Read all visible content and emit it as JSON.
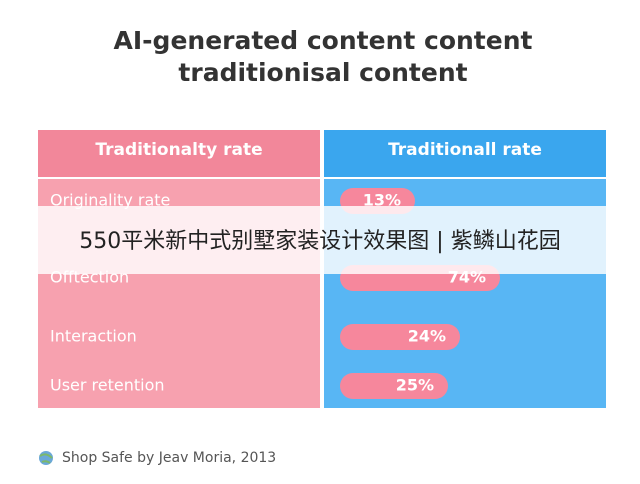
{
  "header": {
    "title_lines": [
      "AI-generated content content",
      "traditionisal content"
    ]
  },
  "table": {
    "columns": [
      "Traditionalty rate",
      "Traditionall rate"
    ],
    "rows": [
      [
        "Originality rate",
        "13%"
      ],
      [
        "Offtection",
        "74%"
      ],
      [
        "Interaction",
        "24%"
      ],
      [
        "User retention",
        "25%"
      ]
    ]
  },
  "banner": "550平米新中式别墅家装设计效果图 | 紫鳞山花园",
  "footer": "Shop Safe by Jeav Moria, 2013"
}
